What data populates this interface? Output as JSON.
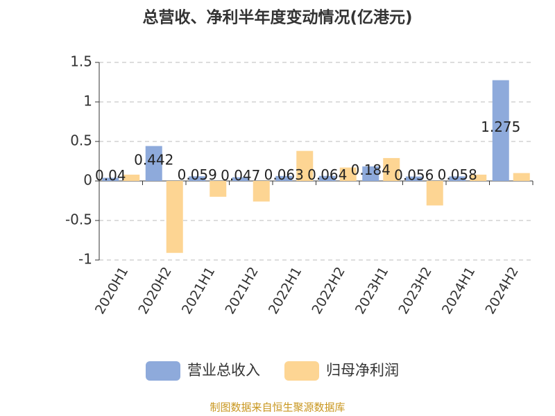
{
  "chart_data": {
    "type": "bar",
    "title": "总营收、净利半年度变动情况(亿港元)",
    "categories": [
      "2020H1",
      "2020H2",
      "2021H1",
      "2021H2",
      "2022H1",
      "2022H2",
      "2023H1",
      "2023H2",
      "2024H1",
      "2024H2"
    ],
    "series": [
      {
        "name": "营业总收入",
        "color": "#8eaadb",
        "values": [
          0.04,
          0.442,
          0.059,
          0.047,
          0.063,
          0.064,
          0.184,
          0.056,
          0.058,
          1.275
        ]
      },
      {
        "name": "归母净利润",
        "color": "#fdd593",
        "values": [
          0.08,
          -0.91,
          -0.2,
          -0.26,
          0.38,
          0.17,
          0.29,
          -0.31,
          0.08,
          0.1
        ]
      }
    ],
    "ylim": [
      -1,
      1.5
    ],
    "yticks": [
      -1,
      -0.5,
      0,
      0.5,
      1,
      1.5
    ],
    "grid": true,
    "legend": "bottom",
    "source": "制图数据来自恒生聚源数据库"
  }
}
